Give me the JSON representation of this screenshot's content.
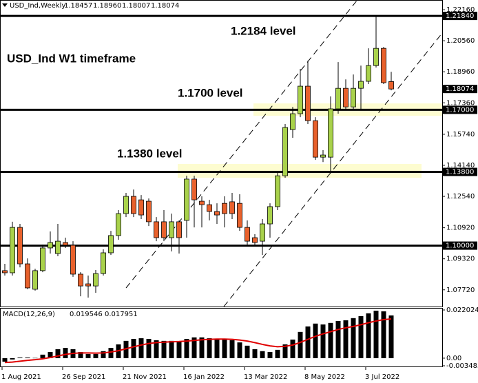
{
  "chart_data": [
    {
      "type": "candlestick",
      "symbol": "USD_Ind,Weekly",
      "ohlc_header": [
        "1.18457",
        "1.18960",
        "1.18007",
        "1.18074"
      ],
      "categories": [
        "1 Aug 2021",
        null,
        null,
        null,
        null,
        null,
        null,
        null,
        "26 Sep 2021",
        null,
        null,
        null,
        null,
        null,
        null,
        null,
        "21 Nov 2021",
        null,
        null,
        null,
        null,
        null,
        null,
        null,
        "16 Jan 2022",
        null,
        null,
        null,
        null,
        null,
        null,
        null,
        "13 Mar 2022",
        null,
        null,
        null,
        null,
        null,
        null,
        null,
        "8 May 2022",
        null,
        null,
        null,
        null,
        null,
        null,
        null,
        "3 Jul 2022",
        null,
        null,
        null
      ],
      "open": [
        1.0871,
        1.086,
        1.1094,
        1.0906,
        1.0775,
        1.0871,
        1.0988,
        1.0959,
        1.1016,
        1.1002,
        1.0853,
        1.0803,
        1.0792,
        1.0856,
        1.0963,
        1.1052,
        1.1165,
        1.1254,
        1.1236,
        1.1229,
        1.1123,
        1.1123,
        1.1041,
        1.1123,
        1.113,
        1.1343,
        1.1229,
        1.1211,
        1.1176,
        1.1218,
        1.1226,
        1.1218,
        1.1094,
        1.1041,
        1.1023,
        1.1112,
        1.1201,
        1.136,
        1.1598,
        1.168,
        1.1822,
        1.1644,
        1.1456,
        1.1456,
        1.1705,
        1.1811,
        1.1715,
        1.1811,
        1.1847,
        1.1928,
        1.2017,
        1.18457
      ],
      "high": [
        1.0906,
        1.1123,
        1.1112,
        1.0934,
        1.0881,
        1.1005,
        1.1073,
        1.1112,
        1.1041,
        1.1023,
        1.0863,
        1.0846,
        1.0874,
        1.0981,
        1.1076,
        1.1183,
        1.1272,
        1.1289,
        1.1261,
        1.1243,
        1.1147,
        1.1183,
        1.1165,
        1.113,
        1.136,
        1.136,
        1.1254,
        1.1236,
        1.1218,
        1.1254,
        1.1272,
        1.1265,
        1.113,
        1.1059,
        1.1137,
        1.1218,
        1.1378,
        1.1627,
        1.1715,
        1.1911,
        1.1953,
        1.1662,
        1.1492,
        1.1769,
        1.1946,
        1.1857,
        1.1882,
        1.1928,
        1.2017,
        1.2184,
        1.2024,
        1.1896
      ],
      "low": [
        1.0846,
        1.0846,
        1.0888,
        1.0775,
        1.0768,
        1.0863,
        1.0959,
        1.0945,
        1.0988,
        1.0839,
        1.0739,
        1.0732,
        1.0757,
        1.0846,
        1.0952,
        1.103,
        1.1147,
        1.1147,
        1.1137,
        1.1101,
        1.1023,
        1.1023,
        1.097,
        1.0959,
        1.1041,
        1.1094,
        1.1094,
        1.113,
        1.1112,
        1.1094,
        1.1137,
        1.1076,
        1.1005,
        1.0995,
        1.0952,
        1.1041,
        1.1183,
        1.135,
        1.1556,
        1.1662,
        1.1627,
        1.1442,
        1.1431,
        1.1385,
        1.168,
        1.1698,
        1.1698,
        1.1705,
        1.1833,
        1.1918,
        1.1833,
        1.18007
      ],
      "close": [
        1.086,
        1.1094,
        1.0906,
        1.0782,
        1.0871,
        1.0988,
        1.1016,
        1.1023,
        1.1002,
        1.0853,
        1.0792,
        1.0792,
        1.0856,
        1.0963,
        1.1052,
        1.1165,
        1.1254,
        1.1165,
        1.1158,
        1.1123,
        1.1041,
        1.1041,
        1.1123,
        1.1041,
        1.1343,
        1.1236,
        1.1211,
        1.1176,
        1.1158,
        1.1165,
        1.1165,
        1.1094,
        1.1023,
        1.1016,
        1.1112,
        1.1201,
        1.136,
        1.1609,
        1.168,
        1.1822,
        1.1644,
        1.1456,
        1.1467,
        1.1705,
        1.1811,
        1.1715,
        1.1811,
        1.1847,
        1.1928,
        1.2017,
        1.184,
        1.18074
      ],
      "up_color": "#a9d24b",
      "down_color": "#e8612c",
      "ylim": [
        1.0686,
        1.2259
      ],
      "yticks": [
        {
          "value": 1.2216,
          "label": "1.22160"
        },
        {
          "value": 1.2056,
          "label": "1.20560"
        },
        {
          "value": 1.1896,
          "label": "1.18960"
        },
        {
          "value": 1.1736,
          "label": "1.17360"
        },
        {
          "value": 1.1574,
          "label": "1.15740"
        },
        {
          "value": 1.1414,
          "label": "1.14140"
        },
        {
          "value": 1.1254,
          "label": "1.12540"
        },
        {
          "value": 1.1092,
          "label": "1.10920"
        },
        {
          "value": 1.0932,
          "label": "1.09320"
        },
        {
          "value": 1.0772,
          "label": "1.07720"
        }
      ],
      "levels": [
        {
          "value": 1.2184,
          "label": "1.21840"
        },
        {
          "value": 1.17,
          "label": "1.17000"
        },
        {
          "value": 1.138,
          "label": "1.13800"
        },
        {
          "value": 1.1,
          "label": "1.10000"
        }
      ],
      "zones": [
        [
          1.1669,
          1.1733
        ],
        [
          1.135,
          1.1421
        ]
      ],
      "zone_color": "#fdfbc8",
      "annotations": [
        "USD_Ind W1 timeframe",
        "1.2184 level",
        "1.1700 level",
        "1.1380 level"
      ]
    },
    {
      "type": "macd",
      "title": "MACD(12,26,9)",
      "series": [
        {
          "color": "#000000",
          "values": [
            -0.0016,
            -0.0006,
            0.0003,
            0.0003,
            0.0001,
            0.0016,
            0.0028,
            0.0041,
            0.0047,
            0.0041,
            0.0028,
            0.0019,
            0.0019,
            0.0032,
            0.0047,
            0.0063,
            0.0079,
            0.0088,
            0.0091,
            0.0088,
            0.0082,
            0.0079,
            0.0079,
            0.0076,
            0.0088,
            0.0095,
            0.0095,
            0.0091,
            0.0088,
            0.0085,
            0.0082,
            0.0072,
            0.0057,
            0.0041,
            0.0032,
            0.0028,
            0.0038,
            0.0063,
            0.0085,
            0.012,
            0.0145,
            0.0158,
            0.0154,
            0.0161,
            0.017,
            0.0173,
            0.0183,
            0.0192,
            0.0205,
            0.0217,
            0.0214,
            0.019546
          ]
        },
        {
          "color": "#e00000",
          "values": [
            -0.002,
            -0.0018,
            -0.0014,
            -0.001,
            -0.0007,
            -0.0003,
            0.0003,
            0.001,
            0.0017,
            0.0022,
            0.0024,
            0.0024,
            0.0023,
            0.0024,
            0.0028,
            0.0034,
            0.0043,
            0.0052,
            0.006,
            0.0067,
            0.0071,
            0.0073,
            0.0075,
            0.0076,
            0.0078,
            0.0081,
            0.0084,
            0.0086,
            0.0087,
            0.0087,
            0.0086,
            0.0083,
            0.0078,
            0.0071,
            0.0063,
            0.0056,
            0.0052,
            0.0054,
            0.006,
            0.0072,
            0.0086,
            0.01,
            0.0111,
            0.0121,
            0.0131,
            0.0139,
            0.0145,
            0.0153,
            0.0162,
            0.017,
            0.0176,
            0.017951
          ]
        }
      ],
      "ylim": [
        -0.003485,
        0.022024
      ],
      "yticks": [
        0.022024,
        {
          "value": 0,
          "label": "0.00"
        },
        -0.003485
      ]
    }
  ]
}
